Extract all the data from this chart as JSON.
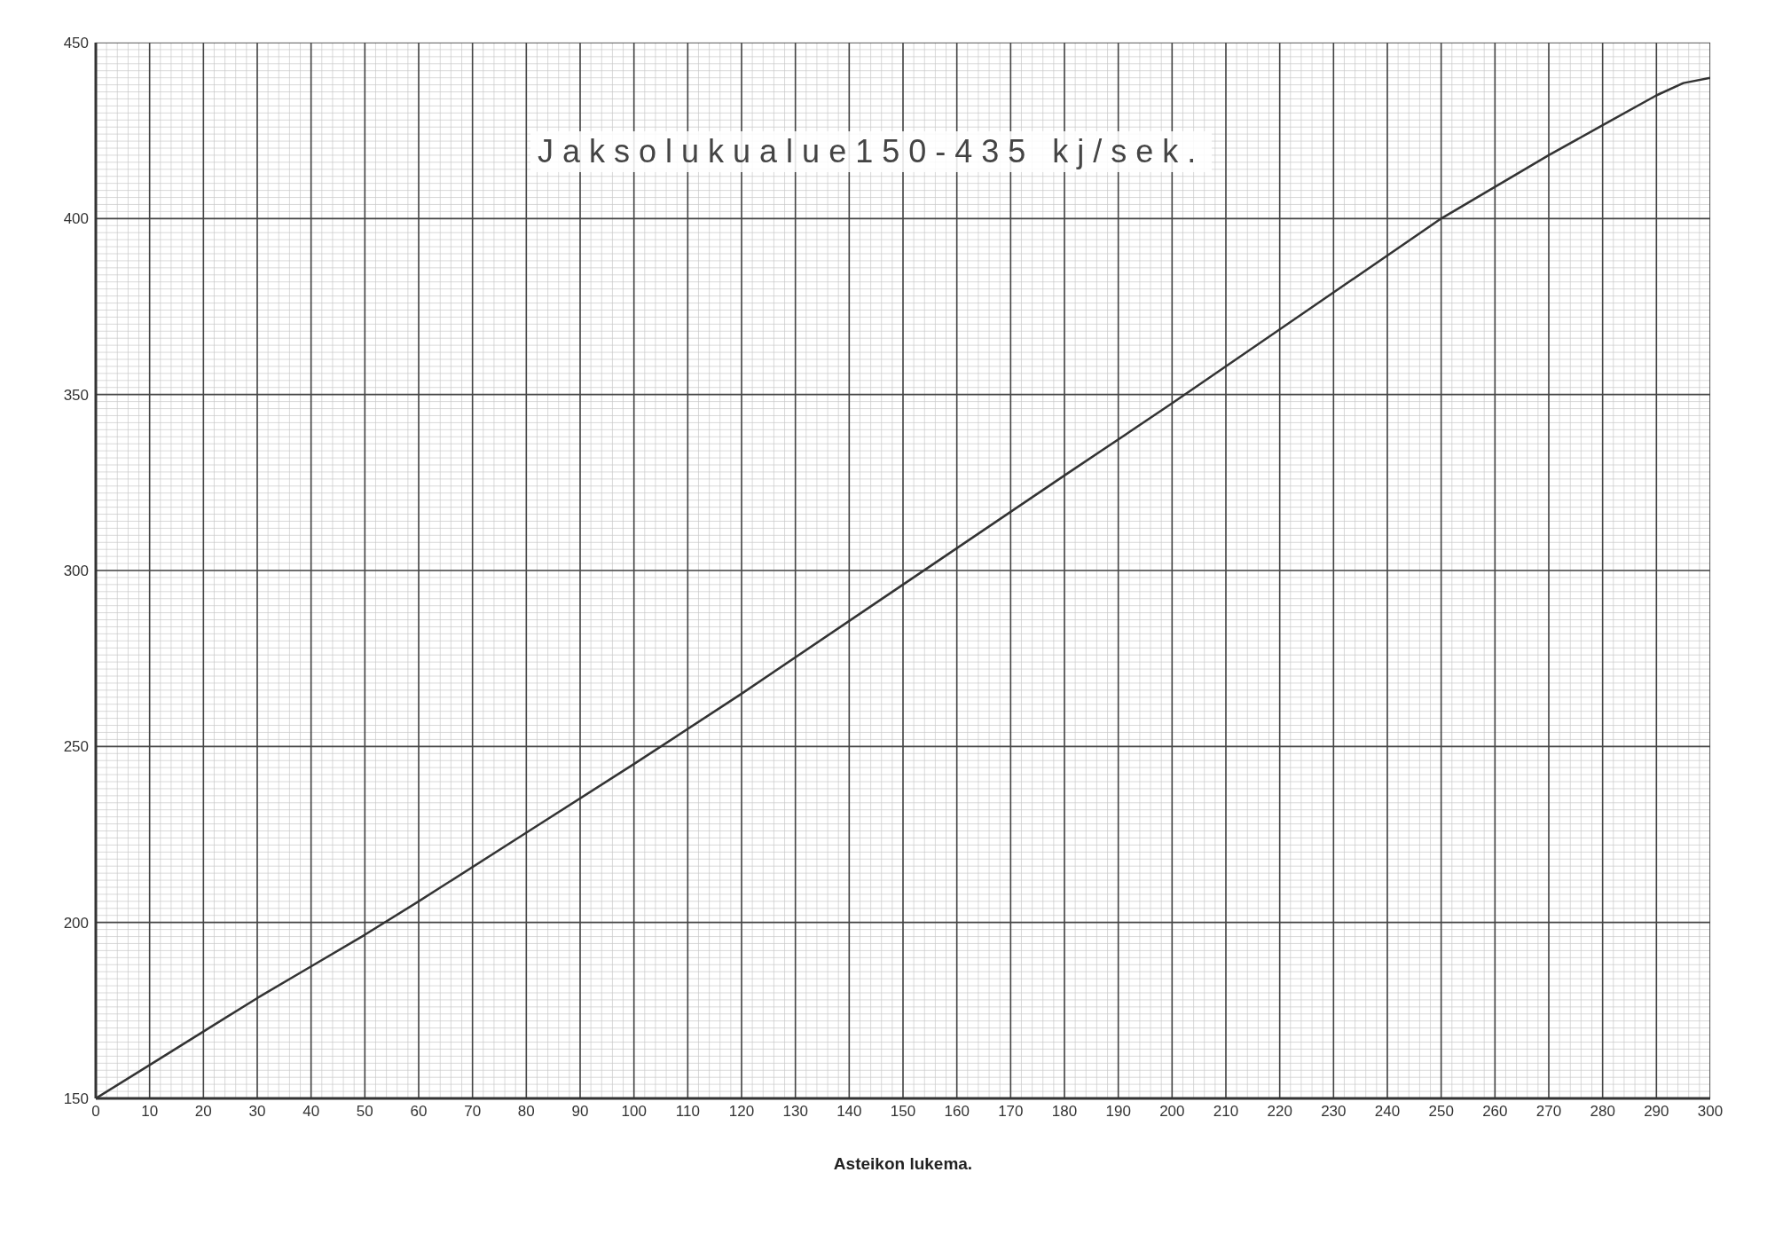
{
  "chart_data": {
    "type": "line",
    "title": "Jaksolukualue150-435 kj/sek.",
    "xlabel": "Asteikon lukema.",
    "x": [
      0,
      10,
      20,
      30,
      40,
      50,
      60,
      80,
      100,
      120,
      150,
      180,
      200,
      220,
      250,
      270,
      280,
      290,
      295,
      300
    ],
    "series": [
      {
        "color": "#333333",
        "values": [
          150,
          159.5,
          169,
          178.5,
          187.5,
          196.5,
          206,
          225.5,
          245,
          265,
          296,
          327,
          347.5,
          368.5,
          400,
          418,
          426.5,
          435,
          438.5,
          440
        ]
      }
    ],
    "xlim": [
      0,
      300
    ],
    "xticks": [
      0,
      10,
      20,
      30,
      40,
      50,
      60,
      70,
      80,
      90,
      100,
      110,
      120,
      130,
      140,
      150,
      160,
      170,
      180,
      190,
      200,
      210,
      220,
      230,
      240,
      250,
      260,
      270,
      280,
      290,
      300
    ],
    "ylim": [
      150,
      450
    ],
    "yticks": [
      150,
      200,
      250,
      300,
      350,
      400,
      450
    ],
    "grid": true,
    "marker": "none",
    "line_style": "solid",
    "legend": false
  }
}
